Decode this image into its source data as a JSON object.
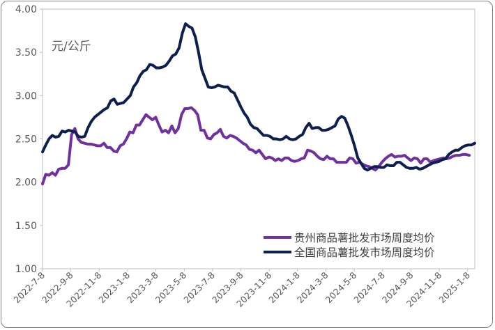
{
  "chart_data": {
    "type": "line",
    "title": "",
    "ylabel": "元/公斤",
    "xlabel": "",
    "ylim": [
      1.0,
      4.0
    ],
    "yticks": [
      "1.00",
      "1.50",
      "2.00",
      "2.50",
      "3.00",
      "3.50",
      "4.00"
    ],
    "xticks": [
      "2022-7-8",
      "2022-9-8",
      "2022-11-8",
      "2023-1-8",
      "2023-3-8",
      "2023-5-8",
      "2023-7-8",
      "2023-9-8",
      "2023-11-8",
      "2024-1-8",
      "2024-3-8",
      "2024-5-8",
      "2024-7-8",
      "2024-9-8",
      "2024-11-8",
      "2025-1-8"
    ],
    "grid": false,
    "legend_position": "bottom-right",
    "series": [
      {
        "name": "贵州商品薯批发市场周度均价",
        "color": "#7030a0",
        "values": [
          1.98,
          2.09,
          2.08,
          2.11,
          2.08,
          2.15,
          2.16,
          2.16,
          2.2,
          2.55,
          2.62,
          2.5,
          2.46,
          2.45,
          2.44,
          2.44,
          2.43,
          2.42,
          2.42,
          2.45,
          2.4,
          2.4,
          2.36,
          2.35,
          2.42,
          2.44,
          2.5,
          2.58,
          2.57,
          2.66,
          2.66,
          2.72,
          2.78,
          2.75,
          2.72,
          2.75,
          2.66,
          2.58,
          2.6,
          2.57,
          2.65,
          2.57,
          2.62,
          2.78,
          2.85,
          2.85,
          2.86,
          2.83,
          2.78,
          2.6,
          2.6,
          2.51,
          2.5,
          2.55,
          2.57,
          2.61,
          2.53,
          2.51,
          2.54,
          2.53,
          2.51,
          2.48,
          2.45,
          2.43,
          2.38,
          2.37,
          2.34,
          2.37,
          2.32,
          2.27,
          2.29,
          2.28,
          2.25,
          2.27,
          2.25,
          2.28,
          2.28,
          2.25,
          2.24,
          2.25,
          2.27,
          2.28,
          2.37,
          2.36,
          2.34,
          2.3,
          2.27,
          2.26,
          2.3,
          2.27,
          2.27,
          2.23,
          2.23,
          2.23,
          2.23,
          2.28,
          2.27,
          2.22,
          2.23,
          2.21,
          2.19,
          2.18,
          2.16,
          2.14,
          2.18,
          2.23,
          2.27,
          2.3,
          2.32,
          2.29,
          2.3,
          2.3,
          2.31,
          2.28,
          2.25,
          2.28,
          2.27,
          2.22,
          2.27,
          2.27,
          2.23,
          2.25,
          2.26,
          2.27,
          2.28,
          2.27,
          2.28,
          2.3,
          2.31,
          2.31,
          2.32,
          2.32,
          2.31
        ]
      },
      {
        "name": "全国商品薯批发市场周度均价",
        "color": "#0d1f4f",
        "values": [
          2.35,
          2.43,
          2.5,
          2.54,
          2.52,
          2.53,
          2.59,
          2.58,
          2.6,
          2.59,
          2.58,
          2.53,
          2.52,
          2.53,
          2.63,
          2.7,
          2.75,
          2.78,
          2.81,
          2.84,
          2.86,
          2.94,
          2.96,
          2.9,
          2.91,
          2.92,
          2.96,
          3.0,
          3.1,
          3.15,
          3.23,
          3.28,
          3.3,
          3.36,
          3.35,
          3.32,
          3.32,
          3.33,
          3.35,
          3.4,
          3.46,
          3.48,
          3.55,
          3.72,
          3.83,
          3.8,
          3.78,
          3.68,
          3.5,
          3.3,
          3.2,
          3.1,
          3.09,
          3.1,
          3.12,
          3.11,
          3.1,
          3.1,
          3.05,
          3.03,
          2.95,
          2.87,
          2.8,
          2.75,
          2.67,
          2.63,
          2.62,
          2.58,
          2.54,
          2.54,
          2.53,
          2.5,
          2.5,
          2.49,
          2.5,
          2.53,
          2.5,
          2.49,
          2.5,
          2.53,
          2.55,
          2.63,
          2.68,
          2.62,
          2.63,
          2.63,
          2.6,
          2.6,
          2.61,
          2.63,
          2.65,
          2.73,
          2.76,
          2.74,
          2.65,
          2.54,
          2.42,
          2.28,
          2.22,
          2.16,
          2.14,
          2.16,
          2.18,
          2.18,
          2.17,
          2.17,
          2.2,
          2.19,
          2.19,
          2.23,
          2.23,
          2.2,
          2.17,
          2.16,
          2.16,
          2.17,
          2.15,
          2.16,
          2.18,
          2.2,
          2.22,
          2.23,
          2.24,
          2.26,
          2.27,
          2.32,
          2.35,
          2.37,
          2.37,
          2.4,
          2.42,
          2.43,
          2.43,
          2.45
        ]
      }
    ]
  }
}
